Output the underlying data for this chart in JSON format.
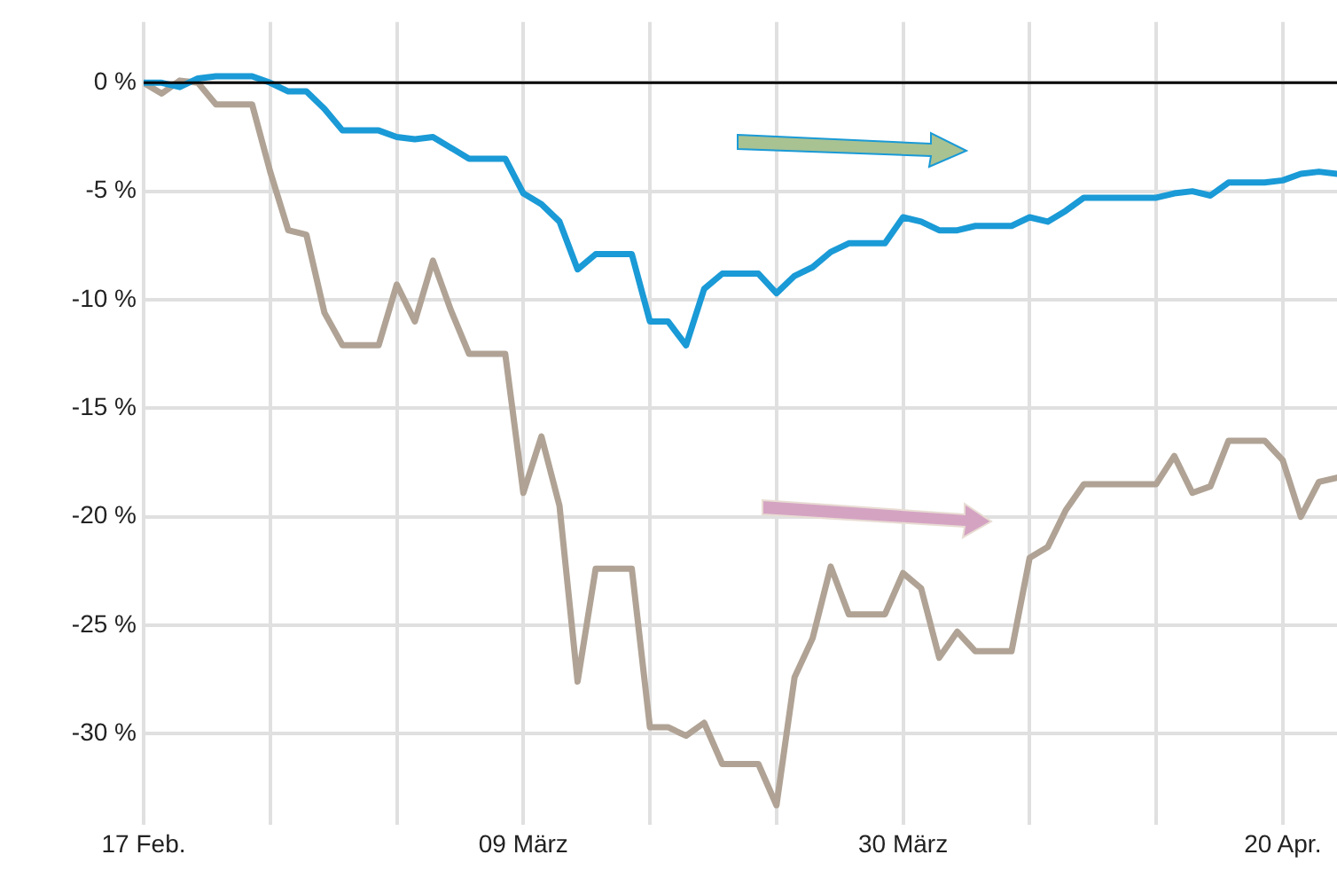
{
  "chart_data": {
    "type": "line",
    "x": [
      "--02-17",
      "--02-18",
      "--02-19",
      "--02-20",
      "--02-21",
      "--02-22",
      "--02-23",
      "--02-24",
      "--02-25",
      "--02-26",
      "--02-27",
      "--02-28",
      "--02-29",
      "--03-01",
      "--03-02",
      "--03-03",
      "--03-04",
      "--03-05",
      "--03-06",
      "--03-07",
      "--03-08",
      "--03-09",
      "--03-10",
      "--03-11",
      "--03-12",
      "--03-13",
      "--03-14",
      "--03-15",
      "--03-16",
      "--03-17",
      "--03-18",
      "--03-19",
      "--03-20",
      "--03-21",
      "--03-22",
      "--03-23",
      "--03-24",
      "--03-25",
      "--03-26",
      "--03-27",
      "--03-28",
      "--03-29",
      "--03-30",
      "--03-31",
      "--04-01",
      "--04-02",
      "--04-03",
      "--04-04",
      "--04-05",
      "--04-06",
      "--04-07",
      "--04-08",
      "--04-09",
      "--04-10",
      "--04-11",
      "--04-12",
      "--04-13",
      "--04-14",
      "--04-15",
      "--04-16",
      "--04-17",
      "--04-18",
      "--04-19",
      "--04-20",
      "--04-21",
      "--04-22",
      "--04-23"
    ],
    "series": [
      {
        "color": "#1a9ad6",
        "values": [
          0,
          0,
          -0.2,
          0.2,
          0.3,
          0.3,
          0.3,
          0,
          -0.4,
          -0.4,
          -1.2,
          -2.2,
          -2.2,
          -2.2,
          -2.5,
          -2.6,
          -2.5,
          -3.0,
          -3.5,
          -3.5,
          -3.5,
          -5.1,
          -5.6,
          -6.4,
          -8.6,
          -7.9,
          -7.9,
          -7.9,
          -11.0,
          -11.0,
          -12.1,
          -9.5,
          -8.8,
          -8.8,
          -8.8,
          -9.7,
          -8.9,
          -8.5,
          -7.8,
          -7.4,
          -7.4,
          -7.4,
          -6.2,
          -6.4,
          -6.8,
          -6.8,
          -6.6,
          -6.6,
          -6.6,
          -6.2,
          -6.4,
          -5.9,
          -5.3,
          -5.3,
          -5.3,
          -5.3,
          -5.3,
          -5.1,
          -5.0,
          -5.2,
          -4.6,
          -4.6,
          -4.6,
          -4.5,
          -4.2,
          -4.1,
          -4.2
        ]
      },
      {
        "color": "#b0a395",
        "values": [
          0,
          -0.5,
          0.1,
          0,
          -1.0,
          -1.0,
          -1.0,
          -4.1,
          -6.8,
          -7.0,
          -10.6,
          -12.1,
          -12.1,
          -12.1,
          -9.3,
          -11.0,
          -8.2,
          -10.5,
          -12.5,
          -12.5,
          -12.5,
          -18.9,
          -16.3,
          -19.5,
          -27.6,
          -22.4,
          -22.4,
          -22.4,
          -29.7,
          -29.7,
          -30.1,
          -29.5,
          -31.4,
          -31.4,
          -31.4,
          -33.3,
          -27.4,
          -25.6,
          -22.3,
          -24.5,
          -24.5,
          -24.5,
          -22.6,
          -23.3,
          -26.5,
          -25.3,
          -26.2,
          -26.2,
          -26.2,
          -21.9,
          -21.4,
          -19.7,
          -18.5,
          -18.5,
          -18.5,
          -18.5,
          -18.5,
          -17.2,
          -18.9,
          -18.6,
          -16.5,
          -16.5,
          -16.5,
          -17.4,
          -20.0,
          -18.4,
          -18.2
        ]
      }
    ],
    "xlim": [
      "--02-17",
      "--04-23"
    ],
    "xticks": [
      {
        "value": "--02-17",
        "label": "17 Feb."
      },
      {
        "value": "--02-24",
        "label": null
      },
      {
        "value": "--03-02",
        "label": null
      },
      {
        "value": "--03-09",
        "label": "09 März"
      },
      {
        "value": "--03-16",
        "label": null
      },
      {
        "value": "--03-23",
        "label": null
      },
      {
        "value": "--03-30",
        "label": "30 März"
      },
      {
        "value": "--04-06",
        "label": null
      },
      {
        "value": "--04-13",
        "label": null
      },
      {
        "value": "--04-20",
        "label": "20 Apr."
      }
    ],
    "ylim": [
      -34.2,
      2.8
    ],
    "yticks": [
      {
        "value": 0,
        "label": "0 %"
      },
      {
        "value": -5,
        "label": "-5 %"
      },
      {
        "value": -10,
        "label": "-10 %"
      },
      {
        "value": -15,
        "label": "-15 %"
      },
      {
        "value": -20,
        "label": "-20 %"
      },
      {
        "value": -25,
        "label": "-25 %"
      },
      {
        "value": -30,
        "label": "-30 %"
      }
    ],
    "ref_lines": [
      {
        "axis": "y",
        "value": 0,
        "color": "#000000"
      }
    ],
    "grid": true,
    "legend": false,
    "marker": "none",
    "line_style": "solid"
  }
}
